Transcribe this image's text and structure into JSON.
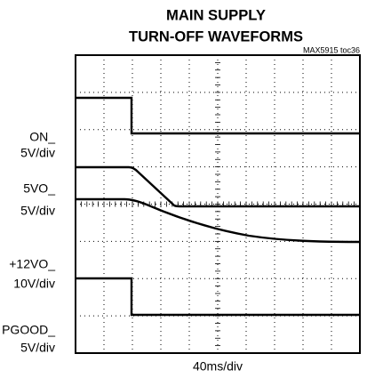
{
  "title": [
    "MAIN SUPPLY",
    "TURN-OFF WAVEFORMS"
  ],
  "tag": "MAX5915 toc36",
  "channels": [
    {
      "name": "ON_",
      "scale": "5V/div"
    },
    {
      "name": "5VO_",
      "scale": "5V/div"
    },
    {
      "name": "+12VO_",
      "scale": "10V/div"
    },
    {
      "name": "PGOOD_",
      "scale": "5V/div"
    }
  ],
  "time_scale": "40ms/div"
}
